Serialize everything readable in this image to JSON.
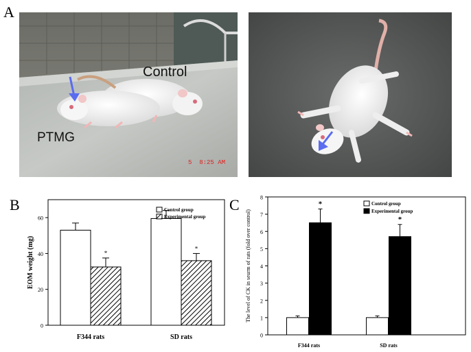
{
  "panel_labels": {
    "a": "A",
    "b": "B",
    "c": "C"
  },
  "photo_left": {
    "label_control": "Control",
    "label_ptmg": "PTMG",
    "timestamp": "5  8:25 AM",
    "arrow_color": "#5a6cf0"
  },
  "photo_right": {
    "arrow_color": "#5a6cf0"
  },
  "chart_data": [
    {
      "type": "bar",
      "panel": "B",
      "categories": [
        "F344 rats",
        "SD rats"
      ],
      "series": [
        {
          "name": "Control group",
          "values": [
            53,
            59.5
          ],
          "errors": [
            4,
            4.5
          ],
          "fill": "#ffffff",
          "pattern": "none"
        },
        {
          "name": "Experimental group",
          "values": [
            32.5,
            36
          ],
          "errors": [
            5,
            4
          ],
          "fill": "#ffffff",
          "pattern": "hatch"
        }
      ],
      "significance": [
        "*",
        "*"
      ],
      "ylabel": "EOM weight (mg)",
      "xlabel": "",
      "ylim": [
        0,
        70
      ],
      "yticks": [
        0,
        20,
        40,
        60
      ],
      "legend": "top-right"
    },
    {
      "type": "bar",
      "panel": "C",
      "categories": [
        "F344 rats",
        "SD rats"
      ],
      "series": [
        {
          "name": "Control group",
          "values": [
            1.0,
            1.0
          ],
          "errors": [
            0.1,
            0.1
          ],
          "fill": "#ffffff"
        },
        {
          "name": "Experimental group",
          "values": [
            6.5,
            5.7
          ],
          "errors": [
            0.8,
            0.7
          ],
          "fill": "#000000"
        }
      ],
      "significance": [
        "*",
        "*"
      ],
      "ylabel": "The level of CK in seurm of rats (fold over control)",
      "xlabel": "",
      "ylim": [
        0,
        8
      ],
      "yticks": [
        0,
        1,
        2,
        3,
        4,
        5,
        6,
        7,
        8
      ],
      "legend": "top-right"
    }
  ]
}
